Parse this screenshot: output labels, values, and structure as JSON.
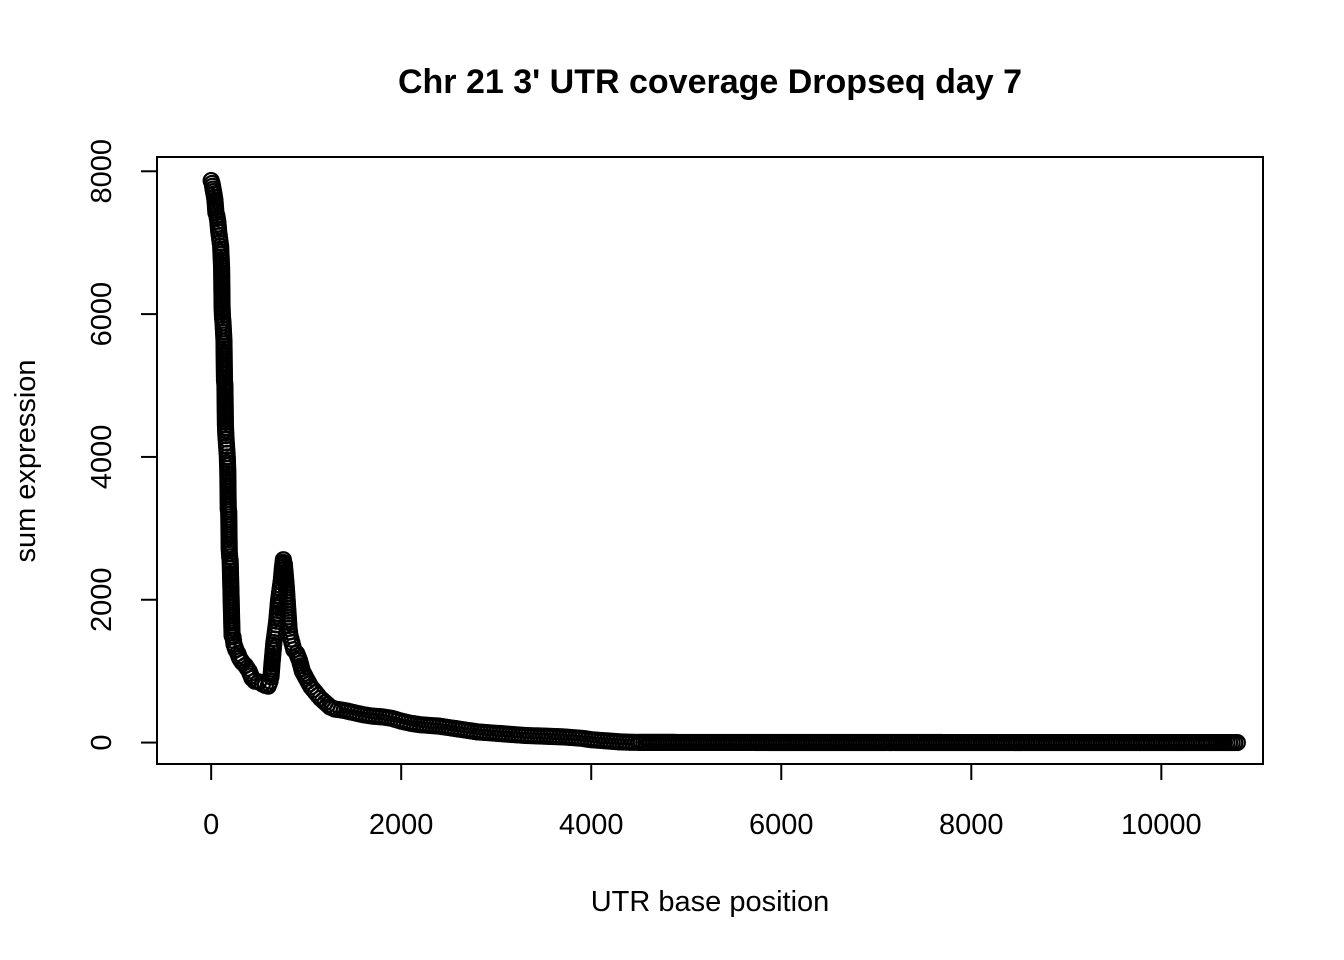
{
  "chart_data": {
    "type": "scatter",
    "title": "Chr 21 3' UTR coverage Dropseq day 7",
    "xlabel": "UTR base position",
    "ylabel": "sum expression",
    "xlim": [
      -570,
      11070
    ],
    "ylim": [
      -300,
      8200
    ],
    "x_ticks": [
      0,
      2000,
      4000,
      6000,
      8000,
      10000
    ],
    "y_ticks": [
      0,
      2000,
      4000,
      6000,
      8000
    ],
    "marker": "open-circle",
    "grid": false,
    "legend": "none",
    "points": [
      [
        0,
        7870
      ],
      [
        10,
        7830
      ],
      [
        20,
        7750
      ],
      [
        30,
        7680
      ],
      [
        40,
        7600
      ],
      [
        50,
        7420
      ],
      [
        60,
        7380
      ],
      [
        70,
        7300
      ],
      [
        80,
        7150
      ],
      [
        90,
        7050
      ],
      [
        100,
        6950
      ],
      [
        105,
        6800
      ],
      [
        110,
        6650
      ],
      [
        115,
        6100
      ],
      [
        120,
        5950
      ],
      [
        125,
        5880
      ],
      [
        130,
        5750
      ],
      [
        135,
        5620
      ],
      [
        140,
        5080
      ],
      [
        145,
        5000
      ],
      [
        150,
        4450
      ],
      [
        155,
        4300
      ],
      [
        160,
        4200
      ],
      [
        165,
        4100
      ],
      [
        170,
        4000
      ],
      [
        175,
        3800
      ],
      [
        180,
        3260
      ],
      [
        185,
        3230
      ],
      [
        190,
        2700
      ],
      [
        195,
        2600
      ],
      [
        200,
        2550
      ],
      [
        210,
        2030
      ],
      [
        220,
        1500
      ],
      [
        230,
        1480
      ],
      [
        240,
        1380
      ],
      [
        260,
        1300
      ],
      [
        280,
        1250
      ],
      [
        300,
        1180
      ],
      [
        330,
        1120
      ],
      [
        360,
        1080
      ],
      [
        400,
        1000
      ],
      [
        430,
        900
      ],
      [
        460,
        860
      ],
      [
        500,
        850
      ],
      [
        540,
        820
      ],
      [
        570,
        800
      ],
      [
        600,
        790
      ],
      [
        620,
        860
      ],
      [
        630,
        920
      ],
      [
        640,
        1100
      ],
      [
        650,
        1250
      ],
      [
        660,
        1400
      ],
      [
        670,
        1500
      ],
      [
        680,
        1600
      ],
      [
        690,
        1700
      ],
      [
        700,
        1850
      ],
      [
        710,
        2000
      ],
      [
        720,
        2100
      ],
      [
        730,
        2200
      ],
      [
        740,
        2300
      ],
      [
        750,
        2450
      ],
      [
        760,
        2560
      ],
      [
        770,
        2500
      ],
      [
        780,
        2350
      ],
      [
        790,
        2200
      ],
      [
        800,
        2000
      ],
      [
        810,
        1800
      ],
      [
        820,
        1600
      ],
      [
        830,
        1500
      ],
      [
        850,
        1400
      ],
      [
        870,
        1300
      ],
      [
        900,
        1250
      ],
      [
        930,
        1150
      ],
      [
        960,
        1000
      ],
      [
        1000,
        900
      ],
      [
        1050,
        780
      ],
      [
        1100,
        700
      ],
      [
        1150,
        620
      ],
      [
        1200,
        560
      ],
      [
        1250,
        500
      ],
      [
        1300,
        470
      ],
      [
        1400,
        450
      ],
      [
        1500,
        420
      ],
      [
        1600,
        390
      ],
      [
        1700,
        370
      ],
      [
        1800,
        360
      ],
      [
        1900,
        340
      ],
      [
        2000,
        300
      ],
      [
        2100,
        270
      ],
      [
        2200,
        250
      ],
      [
        2300,
        240
      ],
      [
        2400,
        230
      ],
      [
        2500,
        210
      ],
      [
        2600,
        190
      ],
      [
        2700,
        170
      ],
      [
        2800,
        150
      ],
      [
        2900,
        140
      ],
      [
        3000,
        130
      ],
      [
        3100,
        120
      ],
      [
        3200,
        110
      ],
      [
        3300,
        100
      ],
      [
        3400,
        95
      ],
      [
        3500,
        90
      ],
      [
        3600,
        85
      ],
      [
        3700,
        80
      ],
      [
        3800,
        70
      ],
      [
        3900,
        60
      ],
      [
        4000,
        40
      ],
      [
        4100,
        30
      ],
      [
        4200,
        20
      ],
      [
        4300,
        10
      ],
      [
        4400,
        5
      ],
      [
        4500,
        3
      ],
      [
        5000,
        2
      ],
      [
        5500,
        2
      ],
      [
        6000,
        1
      ],
      [
        6500,
        1
      ],
      [
        7000,
        1
      ],
      [
        7500,
        1
      ],
      [
        8000,
        0
      ],
      [
        8500,
        0
      ],
      [
        9000,
        0
      ],
      [
        9500,
        0
      ],
      [
        10000,
        0
      ],
      [
        10500,
        0
      ],
      [
        10800,
        0
      ]
    ]
  }
}
